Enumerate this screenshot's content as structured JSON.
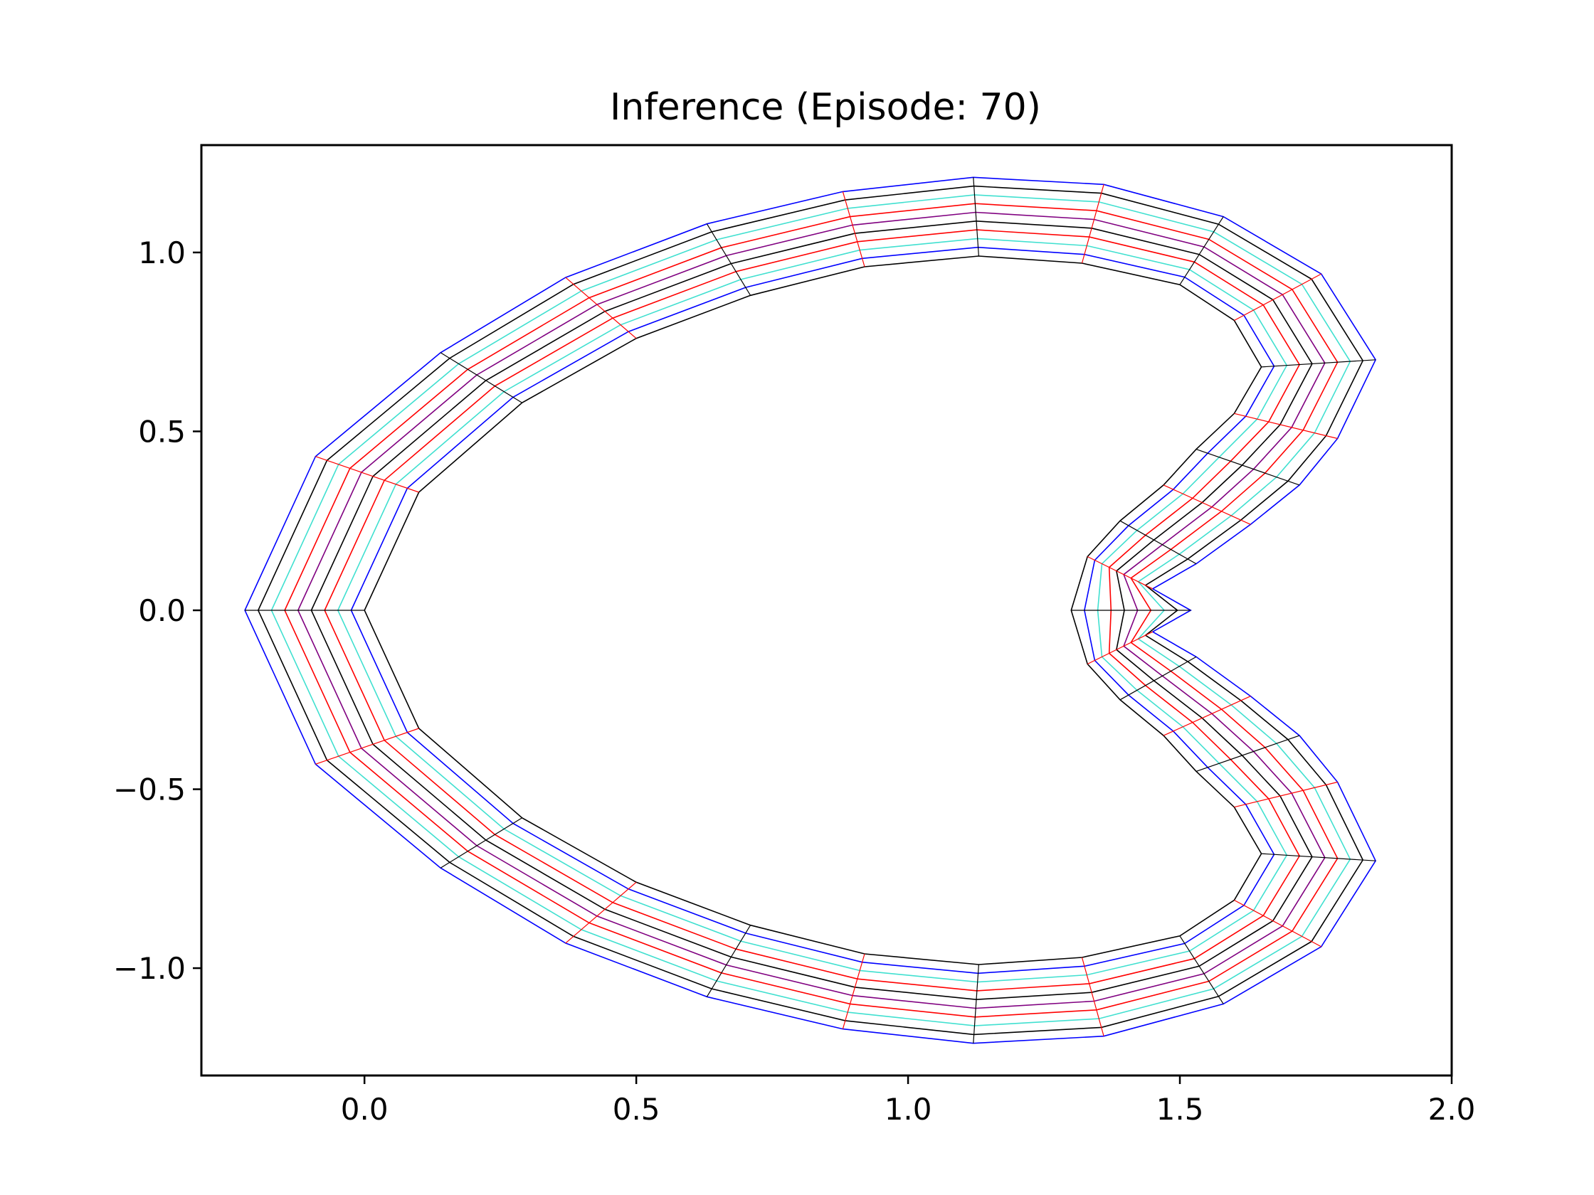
{
  "chart_data": {
    "type": "line",
    "title": "Inference (Episode: 70)",
    "xlabel": "",
    "ylabel": "",
    "xlim": [
      -0.3,
      2.0
    ],
    "ylim": [
      -1.3,
      1.3
    ],
    "xticks": [
      0.0,
      0.5,
      1.0,
      1.5,
      2.0
    ],
    "xtick_labels": [
      "0.0",
      "0.5",
      "1.0",
      "1.5",
      "2.0"
    ],
    "yticks": [
      -1.0,
      -0.5,
      0.0,
      0.5,
      1.0
    ],
    "ytick_labels": [
      "−1.0",
      "−0.5",
      "0.0",
      "0.5",
      "1.0"
    ],
    "grid": false,
    "legend": "none",
    "series_colors": [
      "#0000ff",
      "#000000",
      "#40e0d0",
      "#ff0000",
      "#800080",
      "#000000",
      "#ff0000",
      "#40e0d0",
      "#0000ff",
      "#000000"
    ],
    "inner_boundary": {
      "x": [
        0.0,
        0.1,
        0.29,
        0.5,
        0.71,
        0.92,
        1.13,
        1.32,
        1.5,
        1.6,
        1.65,
        1.6,
        1.53,
        1.47,
        1.39,
        1.33,
        1.3,
        1.33,
        1.39,
        1.47,
        1.53,
        1.6,
        1.65,
        1.6,
        1.5,
        1.32,
        1.13,
        0.92,
        0.71,
        0.5,
        0.29,
        0.1
      ],
      "y": [
        0.0,
        0.33,
        0.58,
        0.76,
        0.88,
        0.96,
        0.99,
        0.97,
        0.91,
        0.81,
        0.68,
        0.55,
        0.45,
        0.35,
        0.25,
        0.15,
        0.0,
        -0.15,
        -0.25,
        -0.35,
        -0.45,
        -0.55,
        -0.68,
        -0.81,
        -0.91,
        -0.97,
        -0.99,
        -0.96,
        -0.88,
        -0.76,
        -0.58,
        -0.33
      ]
    },
    "outer_boundary": {
      "x": [
        -0.22,
        -0.09,
        0.14,
        0.37,
        0.63,
        0.88,
        1.12,
        1.36,
        1.58,
        1.76,
        1.86,
        1.79,
        1.72,
        1.63,
        1.53,
        1.45,
        1.52,
        1.45,
        1.53,
        1.63,
        1.72,
        1.79,
        1.86,
        1.76,
        1.58,
        1.36,
        1.12,
        0.88,
        0.63,
        0.37,
        0.14,
        -0.09
      ],
      "y": [
        0.0,
        0.43,
        0.72,
        0.93,
        1.08,
        1.17,
        1.21,
        1.19,
        1.1,
        0.94,
        0.7,
        0.48,
        0.35,
        0.24,
        0.13,
        0.06,
        0.0,
        -0.06,
        -0.13,
        -0.24,
        -0.35,
        -0.48,
        -0.7,
        -0.94,
        -1.1,
        -1.19,
        -1.21,
        -1.17,
        -1.08,
        -0.93,
        -0.72,
        -0.43
      ]
    }
  }
}
